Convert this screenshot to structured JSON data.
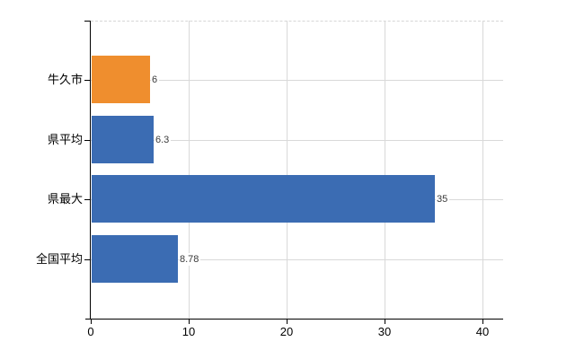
{
  "chart_data": {
    "type": "bar",
    "orientation": "horizontal",
    "title": "",
    "xlabel": "",
    "ylabel": "",
    "categories": [
      "牛久市",
      "県平均",
      "県最大",
      "全国平均"
    ],
    "values": [
      6,
      6.3,
      35,
      8.78
    ],
    "value_labels": [
      "6",
      "6.3",
      "35",
      "8.78"
    ],
    "bar_colors": [
      "#ef8e2e",
      "#3b6cb3",
      "#3b6cb3",
      "#3b6cb3"
    ],
    "x_ticks": [
      0,
      10,
      20,
      30,
      40
    ],
    "x_tick_labels": [
      "0",
      "10",
      "20",
      "30",
      "40"
    ],
    "xlim": [
      0,
      42
    ],
    "grid": true,
    "legend": false
  },
  "colors": {
    "background": "#ffffff",
    "axis": "#000000",
    "gridline": "#d9d9d9",
    "category_label": "#000000",
    "value_label": "#3a3a3a",
    "bar_orange": "#ef8e2e",
    "bar_blue": "#3b6cb3"
  }
}
